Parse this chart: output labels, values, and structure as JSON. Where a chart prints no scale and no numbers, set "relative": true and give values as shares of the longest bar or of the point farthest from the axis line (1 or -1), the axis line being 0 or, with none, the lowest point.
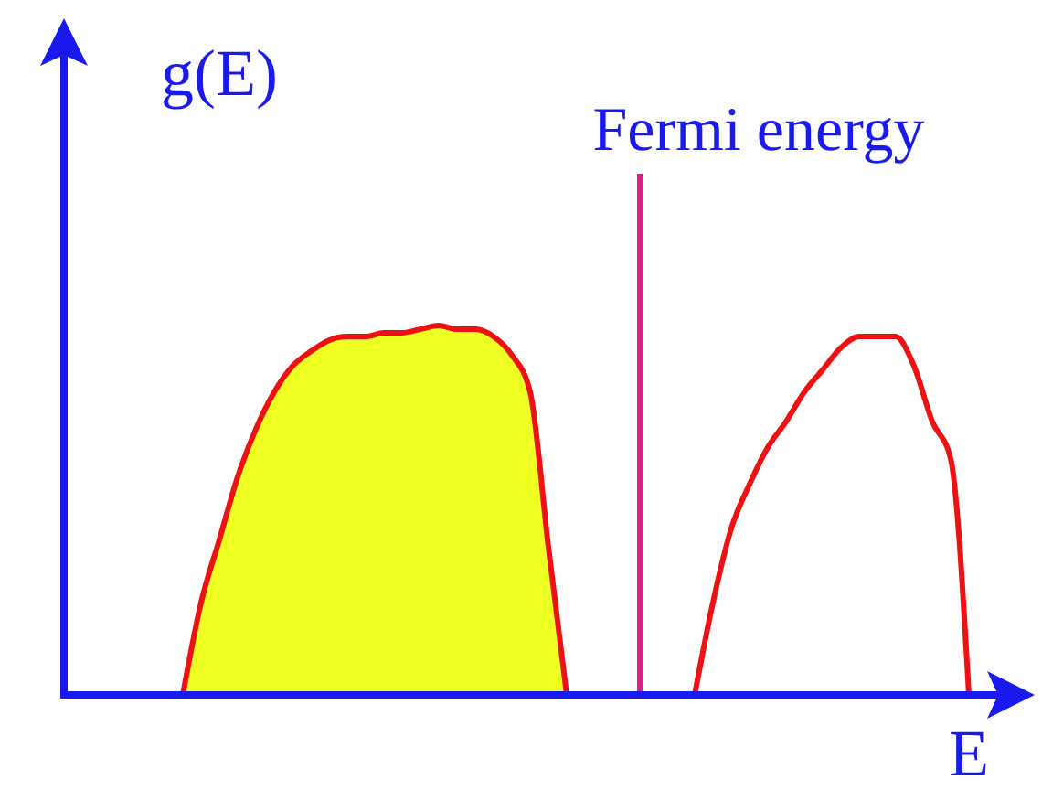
{
  "chart_data": {
    "type": "area",
    "relative": true,
    "xlabel": "E",
    "ylabel": "g(E)",
    "categories": [
      null,
      null,
      null,
      null,
      null,
      null,
      null,
      null,
      null,
      null,
      null,
      null,
      null,
      null,
      null,
      null,
      null,
      null,
      null,
      null,
      null,
      null,
      null,
      null,
      null,
      null,
      null,
      null,
      null,
      null,
      null,
      null,
      null,
      null,
      null,
      null,
      null,
      null,
      null,
      null,
      null,
      null,
      null,
      null,
      null,
      null,
      null,
      null,
      null,
      null,
      null,
      null
    ],
    "series": [
      {
        "color": "#eeff22",
        "values": [
          null,
          null,
          null,
          null,
          null,
          null,
          0,
          0.25,
          0.42,
          0.59,
          0.72,
          0.82,
          0.89,
          0.93,
          0.96,
          0.97,
          0.97,
          0.98,
          0.98,
          0.99,
          1,
          0.99,
          0.99,
          0.97,
          0.92,
          0.82,
          0.4,
          0,
          null,
          null,
          null,
          null,
          null,
          null,
          null,
          null,
          null,
          null,
          null,
          null,
          null,
          null,
          null,
          null,
          null,
          null,
          null,
          null,
          null,
          null,
          null,
          null
        ]
      },
      {
        "type": "line",
        "color": "#ee1111",
        "values": [
          null,
          null,
          null,
          null,
          null,
          null,
          null,
          null,
          null,
          null,
          null,
          null,
          null,
          null,
          null,
          null,
          null,
          null,
          null,
          null,
          null,
          null,
          null,
          null,
          null,
          null,
          null,
          null,
          null,
          null,
          null,
          null,
          null,
          null,
          0,
          0.25,
          0.45,
          0.57,
          0.67,
          0.74,
          0.82,
          0.88,
          0.94,
          0.97,
          0.97,
          0.97,
          0.89,
          0.74,
          0.64,
          0,
          null,
          null
        ]
      }
    ],
    "annotations": [
      "Fermi energy"
    ]
  }
}
